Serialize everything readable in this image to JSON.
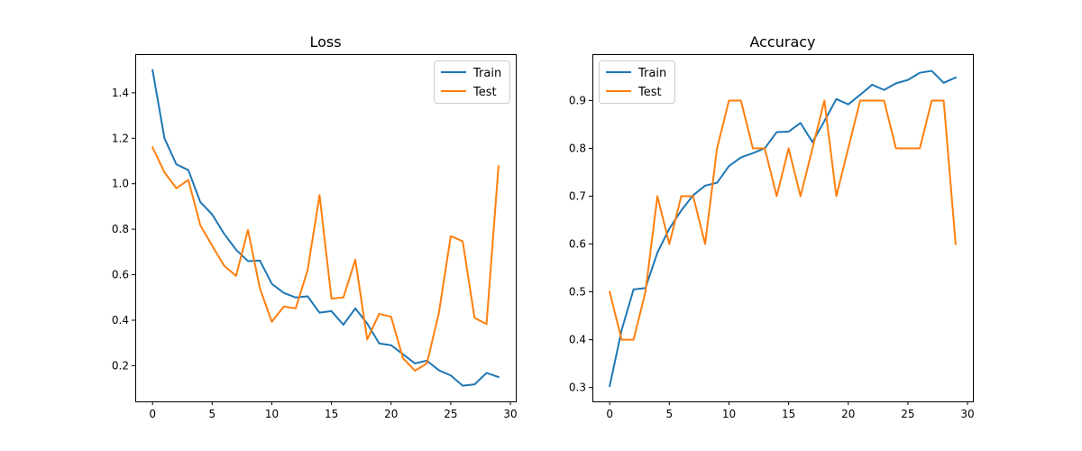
{
  "chart_data": [
    {
      "type": "line",
      "title": "Loss",
      "xlabel": "",
      "ylabel": "",
      "xlim": [
        -1.45,
        30.45
      ],
      "ylim": [
        0.043,
        1.57
      ],
      "xticks": [
        0,
        5,
        10,
        15,
        20,
        25,
        30
      ],
      "yticks": [
        0.2,
        0.4,
        0.6,
        0.8,
        1.0,
        1.2,
        1.4
      ],
      "ytick_labels": [
        "0.2",
        "0.4",
        "0.6",
        "0.8",
        "1.0",
        "1.2",
        "1.4"
      ],
      "grid": false,
      "legend_position": "upper right",
      "x": [
        0,
        1,
        2,
        3,
        4,
        5,
        6,
        7,
        8,
        9,
        10,
        11,
        12,
        13,
        14,
        15,
        16,
        17,
        18,
        19,
        20,
        21,
        22,
        23,
        24,
        25,
        26,
        27,
        28,
        29
      ],
      "series": [
        {
          "name": "Train",
          "color": "#1f77b4",
          "values": [
            1.5,
            1.2,
            1.085,
            1.06,
            0.92,
            0.865,
            0.78,
            0.71,
            0.66,
            0.662,
            0.56,
            0.52,
            0.5,
            0.505,
            0.433,
            0.44,
            0.38,
            0.452,
            0.385,
            0.298,
            0.29,
            0.25,
            0.21,
            0.222,
            0.18,
            0.157,
            0.112,
            0.118,
            0.168,
            0.15
          ]
        },
        {
          "name": "Test",
          "color": "#ff7f0e",
          "values": [
            1.16,
            1.05,
            0.98,
            1.017,
            0.818,
            0.727,
            0.64,
            0.595,
            0.797,
            0.54,
            0.393,
            0.46,
            0.452,
            0.62,
            0.95,
            0.495,
            0.5,
            0.666,
            0.315,
            0.428,
            0.415,
            0.232,
            0.178,
            0.21,
            0.43,
            0.77,
            0.747,
            0.41,
            0.383,
            1.077
          ]
        }
      ]
    },
    {
      "type": "line",
      "title": "Accuracy",
      "xlabel": "",
      "ylabel": "",
      "xlim": [
        -1.45,
        30.45
      ],
      "ylim": [
        0.271,
        0.997
      ],
      "xticks": [
        0,
        5,
        10,
        15,
        20,
        25,
        30
      ],
      "yticks": [
        0.3,
        0.4,
        0.5,
        0.6,
        0.7,
        0.8,
        0.9
      ],
      "ytick_labels": [
        "0.3",
        "0.4",
        "0.5",
        "0.6",
        "0.7",
        "0.8",
        "0.9"
      ],
      "grid": false,
      "legend_position": "upper left",
      "x": [
        0,
        1,
        2,
        3,
        4,
        5,
        6,
        7,
        8,
        9,
        10,
        11,
        12,
        13,
        14,
        15,
        16,
        17,
        18,
        19,
        20,
        21,
        22,
        23,
        24,
        25,
        26,
        27,
        28,
        29
      ],
      "series": [
        {
          "name": "Train",
          "color": "#1f77b4",
          "values": [
            0.303,
            0.42,
            0.505,
            0.508,
            0.582,
            0.632,
            0.67,
            0.702,
            0.722,
            0.728,
            0.763,
            0.781,
            0.79,
            0.8,
            0.834,
            0.835,
            0.853,
            0.813,
            0.857,
            0.903,
            0.892,
            0.912,
            0.933,
            0.922,
            0.936,
            0.943,
            0.958,
            0.962,
            0.937,
            0.948
          ]
        },
        {
          "name": "Test",
          "color": "#ff7f0e",
          "values": [
            0.5,
            0.4,
            0.4,
            0.5,
            0.7,
            0.6,
            0.7,
            0.7,
            0.6,
            0.8,
            0.9,
            0.9,
            0.8,
            0.8,
            0.7,
            0.8,
            0.7,
            0.8,
            0.9,
            0.7,
            0.8,
            0.9,
            0.9,
            0.9,
            0.8,
            0.8,
            0.8,
            0.9,
            0.9,
            0.6
          ]
        }
      ]
    }
  ]
}
